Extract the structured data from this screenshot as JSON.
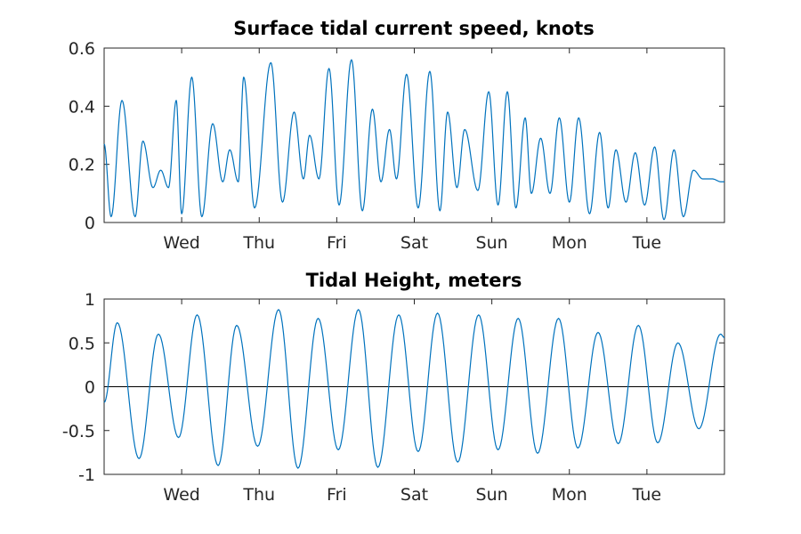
{
  "colors": {
    "series": "#0072BD",
    "axis": "#262626",
    "zero_line": "#000000"
  },
  "chart_data": [
    {
      "type": "line",
      "title": "Surface tidal current speed, knots",
      "xlabel": "",
      "ylabel": "",
      "xlim": [
        0,
        8
      ],
      "ylim": [
        0,
        0.6
      ],
      "yticks": [
        0,
        0.2,
        0.4,
        0.6
      ],
      "ytick_labels": [
        "0",
        "0.2",
        "0.4",
        "0.6"
      ],
      "xticks": [
        1,
        2,
        3,
        4,
        5,
        6,
        7
      ],
      "xtick_labels": [
        "Wed",
        "Thu",
        "Fri",
        "Sat",
        "Sun",
        "Mon",
        "Tue"
      ],
      "grid": false,
      "series": [
        {
          "x": [
            0.0,
            0.09,
            0.23,
            0.4,
            0.5,
            0.63,
            0.73,
            0.83,
            0.93,
            1.0,
            1.13,
            1.26,
            1.4,
            1.53,
            1.62,
            1.73,
            1.8,
            1.94,
            2.15,
            2.3,
            2.45,
            2.57,
            2.65,
            2.77,
            2.9,
            3.03,
            3.19,
            3.33,
            3.46,
            3.57,
            3.68,
            3.77,
            3.9,
            4.05,
            4.2,
            4.33,
            4.43,
            4.55,
            4.65,
            4.82,
            4.96,
            5.08,
            5.2,
            5.31,
            5.43,
            5.51,
            5.63,
            5.75,
            5.87,
            6.0,
            6.12,
            6.26,
            6.39,
            6.5,
            6.6,
            6.73,
            6.85,
            6.97,
            7.1,
            7.22,
            7.35,
            7.47,
            7.6,
            7.72,
            7.84,
            7.96,
            8.0
          ],
          "y": [
            0.27,
            0.02,
            0.42,
            0.02,
            0.28,
            0.12,
            0.18,
            0.12,
            0.42,
            0.03,
            0.5,
            0.02,
            0.34,
            0.14,
            0.25,
            0.14,
            0.5,
            0.05,
            0.55,
            0.07,
            0.38,
            0.15,
            0.3,
            0.15,
            0.53,
            0.06,
            0.56,
            0.04,
            0.39,
            0.14,
            0.32,
            0.15,
            0.51,
            0.05,
            0.52,
            0.04,
            0.38,
            0.12,
            0.32,
            0.11,
            0.45,
            0.06,
            0.45,
            0.05,
            0.36,
            0.1,
            0.29,
            0.1,
            0.36,
            0.07,
            0.36,
            0.03,
            0.31,
            0.05,
            0.25,
            0.07,
            0.24,
            0.06,
            0.26,
            0.01,
            0.25,
            0.02,
            0.18,
            0.15,
            0.15,
            0.14,
            0.14
          ]
        }
      ]
    },
    {
      "type": "line",
      "title": "Tidal Height, meters",
      "xlabel": "",
      "ylabel": "",
      "xlim": [
        0,
        8
      ],
      "ylim": [
        -1,
        1
      ],
      "yticks": [
        -1,
        -0.5,
        0,
        0.5,
        1
      ],
      "ytick_labels": [
        "-1",
        "-0.5",
        "0",
        "0.5",
        "1"
      ],
      "xticks": [
        1,
        2,
        3,
        4,
        5,
        6,
        7
      ],
      "xtick_labels": [
        "Wed",
        "Thu",
        "Fri",
        "Sat",
        "Sun",
        "Mon",
        "Tue"
      ],
      "grid": false,
      "zero_line": true,
      "series": [
        {
          "x": [
            0.0,
            0.17,
            0.45,
            0.7,
            0.96,
            1.2,
            1.47,
            1.71,
            1.98,
            2.25,
            2.5,
            2.76,
            3.02,
            3.28,
            3.53,
            3.8,
            4.05,
            4.3,
            4.56,
            4.83,
            5.08,
            5.34,
            5.59,
            5.86,
            6.11,
            6.37,
            6.63,
            6.89,
            7.14,
            7.4,
            7.67,
            7.95,
            8.0
          ],
          "y": [
            -0.18,
            0.73,
            -0.82,
            0.6,
            -0.58,
            0.82,
            -0.9,
            0.7,
            -0.68,
            0.88,
            -0.93,
            0.78,
            -0.72,
            0.88,
            -0.92,
            0.82,
            -0.74,
            0.84,
            -0.86,
            0.82,
            -0.72,
            0.78,
            -0.76,
            0.78,
            -0.7,
            0.62,
            -0.65,
            0.7,
            -0.64,
            0.5,
            -0.48,
            0.6,
            0.56
          ]
        }
      ]
    }
  ]
}
